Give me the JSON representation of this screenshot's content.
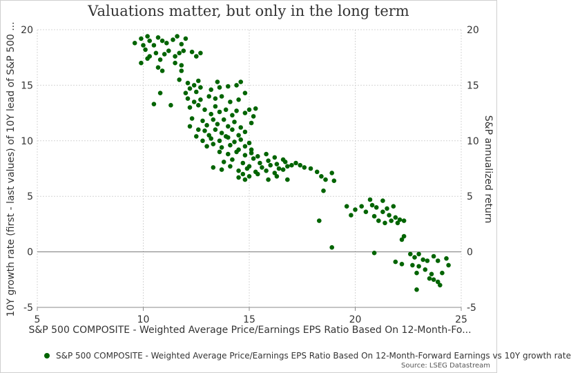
{
  "chart_data": {
    "type": "scatter",
    "title": "Valuations matter, but only in the long term",
    "xlabel": "S&P 500 COMPOSITE - Weighted Average Price/Earnings EPS Ratio Based On 12-Month-Fo...",
    "ylabel": "10Y growth rate (first - last values) of 10Y lead of S&P 500 ...",
    "y2label": "S&P annualized return",
    "xlim": [
      5,
      25
    ],
    "ylim": [
      -5,
      20
    ],
    "xticks": [
      5,
      10,
      15,
      20,
      25
    ],
    "yticks": [
      -5,
      0,
      5,
      10,
      15,
      20
    ],
    "grid": true,
    "legend_position": "bottom",
    "source": "Source: LSEG Datastream",
    "series": [
      {
        "name": "S&P 500 COMPOSITE - Weighted Average Price/Earnings EPS Ratio Based On 12-Month-Forward Earnings vs 10Y growth rate",
        "color": "#006400",
        "points": [
          [
            9.6,
            18.8
          ],
          [
            9.9,
            19.2
          ],
          [
            10.0,
            18.6
          ],
          [
            10.2,
            19.4
          ],
          [
            10.3,
            19.0
          ],
          [
            10.5,
            18.6
          ],
          [
            10.7,
            19.3
          ],
          [
            10.9,
            19.0
          ],
          [
            11.1,
            18.8
          ],
          [
            11.4,
            19.1
          ],
          [
            11.6,
            19.4
          ],
          [
            11.8,
            18.7
          ],
          [
            12.0,
            19.2
          ],
          [
            10.1,
            18.2
          ],
          [
            10.3,
            17.6
          ],
          [
            10.6,
            17.9
          ],
          [
            10.8,
            17.3
          ],
          [
            11.0,
            17.8
          ],
          [
            11.2,
            18.1
          ],
          [
            11.5,
            17.6
          ],
          [
            11.7,
            17.9
          ],
          [
            11.9,
            18.1
          ],
          [
            12.3,
            18.0
          ],
          [
            12.5,
            17.6
          ],
          [
            12.7,
            17.9
          ],
          [
            9.9,
            17.0
          ],
          [
            10.2,
            17.4
          ],
          [
            10.7,
            16.6
          ],
          [
            10.9,
            16.3
          ],
          [
            11.5,
            17.0
          ],
          [
            11.8,
            16.8
          ],
          [
            11.8,
            16.3
          ],
          [
            10.5,
            13.3
          ],
          [
            10.8,
            14.3
          ],
          [
            11.3,
            13.2
          ],
          [
            11.7,
            15.5
          ],
          [
            12.1,
            15.2
          ],
          [
            12.4,
            15.0
          ],
          [
            12.6,
            15.4
          ],
          [
            13.5,
            15.3
          ],
          [
            14.6,
            15.3
          ],
          [
            12.0,
            14.3
          ],
          [
            12.2,
            14.7
          ],
          [
            12.5,
            14.4
          ],
          [
            12.7,
            14.8
          ],
          [
            13.2,
            14.6
          ],
          [
            13.6,
            14.8
          ],
          [
            14.0,
            14.9
          ],
          [
            14.4,
            15.0
          ],
          [
            14.8,
            14.3
          ],
          [
            12.1,
            13.8
          ],
          [
            12.4,
            13.5
          ],
          [
            12.7,
            13.7
          ],
          [
            13.1,
            14.0
          ],
          [
            13.4,
            13.8
          ],
          [
            13.7,
            14.0
          ],
          [
            14.1,
            13.5
          ],
          [
            14.5,
            13.7
          ],
          [
            12.2,
            13.0
          ],
          [
            12.6,
            13.2
          ],
          [
            12.9,
            12.8
          ],
          [
            13.2,
            12.4
          ],
          [
            13.4,
            13.1
          ],
          [
            13.6,
            12.6
          ],
          [
            13.9,
            12.8
          ],
          [
            14.2,
            12.3
          ],
          [
            14.4,
            12.7
          ],
          [
            14.8,
            12.5
          ],
          [
            15.0,
            12.8
          ],
          [
            15.2,
            12.2
          ],
          [
            15.3,
            12.9
          ],
          [
            12.3,
            12.0
          ],
          [
            12.8,
            11.8
          ],
          [
            13.0,
            11.4
          ],
          [
            13.3,
            11.9
          ],
          [
            13.5,
            11.5
          ],
          [
            13.8,
            11.9
          ],
          [
            14.0,
            11.3
          ],
          [
            14.3,
            11.7
          ],
          [
            14.6,
            11.2
          ],
          [
            15.1,
            11.6
          ],
          [
            12.2,
            11.3
          ],
          [
            12.6,
            11.0
          ],
          [
            12.9,
            10.9
          ],
          [
            13.1,
            10.5
          ],
          [
            13.4,
            11.0
          ],
          [
            13.7,
            10.7
          ],
          [
            13.9,
            10.4
          ],
          [
            14.2,
            11.0
          ],
          [
            14.5,
            10.5
          ],
          [
            14.8,
            10.8
          ],
          [
            12.5,
            10.4
          ],
          [
            12.8,
            10.0
          ],
          [
            13.2,
            10.2
          ],
          [
            13.6,
            10.0
          ],
          [
            14.0,
            10.3
          ],
          [
            14.3,
            9.9
          ],
          [
            14.6,
            10.1
          ],
          [
            15.0,
            9.8
          ],
          [
            13.0,
            9.5
          ],
          [
            13.3,
            9.7
          ],
          [
            13.7,
            9.4
          ],
          [
            14.1,
            9.6
          ],
          [
            14.5,
            9.2
          ],
          [
            14.8,
            9.5
          ],
          [
            15.1,
            9.2
          ],
          [
            13.6,
            9.0
          ],
          [
            14.0,
            8.8
          ],
          [
            14.4,
            9.0
          ],
          [
            14.8,
            8.7
          ],
          [
            15.1,
            8.9
          ],
          [
            15.4,
            8.6
          ],
          [
            15.8,
            8.8
          ],
          [
            16.2,
            8.5
          ],
          [
            16.6,
            8.3
          ],
          [
            15.2,
            8.4
          ],
          [
            15.5,
            8.0
          ],
          [
            15.9,
            8.2
          ],
          [
            16.3,
            7.9
          ],
          [
            16.7,
            8.1
          ],
          [
            17.0,
            7.8
          ],
          [
            17.2,
            8.0
          ],
          [
            15.6,
            7.6
          ],
          [
            16.0,
            7.8
          ],
          [
            16.4,
            7.5
          ],
          [
            16.8,
            7.7
          ],
          [
            13.8,
            8.1
          ],
          [
            14.2,
            8.3
          ],
          [
            14.7,
            8.0
          ],
          [
            15.0,
            7.7
          ],
          [
            13.3,
            7.6
          ],
          [
            13.7,
            7.4
          ],
          [
            14.1,
            7.7
          ],
          [
            14.5,
            7.3
          ],
          [
            14.9,
            7.5
          ],
          [
            15.3,
            7.2
          ],
          [
            15.8,
            7.3
          ],
          [
            16.2,
            7.1
          ],
          [
            16.6,
            7.4
          ],
          [
            14.7,
            7.0
          ],
          [
            15.0,
            6.8
          ],
          [
            15.4,
            7.0
          ],
          [
            14.5,
            6.7
          ],
          [
            14.8,
            6.5
          ],
          [
            15.9,
            6.5
          ],
          [
            16.3,
            6.8
          ],
          [
            16.8,
            6.5
          ],
          [
            17.4,
            7.8
          ],
          [
            17.6,
            7.6
          ],
          [
            17.9,
            7.5
          ],
          [
            18.2,
            7.2
          ],
          [
            18.4,
            6.8
          ],
          [
            18.6,
            6.5
          ],
          [
            18.9,
            7.1
          ],
          [
            19.0,
            6.4
          ],
          [
            18.5,
            5.5
          ],
          [
            18.3,
            2.8
          ],
          [
            18.9,
            0.4
          ],
          [
            19.6,
            4.1
          ],
          [
            19.8,
            3.3
          ],
          [
            20.0,
            3.8
          ],
          [
            20.3,
            4.1
          ],
          [
            20.5,
            3.6
          ],
          [
            20.7,
            4.7
          ],
          [
            20.8,
            4.2
          ],
          [
            21.0,
            4.0
          ],
          [
            21.3,
            4.6
          ],
          [
            21.3,
            3.6
          ],
          [
            21.5,
            3.9
          ],
          [
            21.6,
            3.3
          ],
          [
            21.8,
            4.1
          ],
          [
            21.9,
            3.1
          ],
          [
            22.1,
            2.9
          ],
          [
            22.3,
            2.8
          ],
          [
            20.9,
            3.2
          ],
          [
            21.1,
            2.8
          ],
          [
            21.4,
            2.6
          ],
          [
            21.7,
            2.8
          ],
          [
            22.0,
            2.6
          ],
          [
            22.2,
            1.1
          ],
          [
            22.3,
            1.4
          ],
          [
            20.9,
            -0.1
          ],
          [
            21.9,
            -0.9
          ],
          [
            22.2,
            -1.1
          ],
          [
            22.6,
            -0.2
          ],
          [
            22.8,
            -0.5
          ],
          [
            23.0,
            -0.2
          ],
          [
            23.2,
            -0.7
          ],
          [
            23.4,
            -0.8
          ],
          [
            23.7,
            -0.4
          ],
          [
            23.9,
            -0.8
          ],
          [
            24.3,
            -0.6
          ],
          [
            24.4,
            -1.2
          ],
          [
            22.7,
            -1.2
          ],
          [
            23.0,
            -1.3
          ],
          [
            23.3,
            -1.6
          ],
          [
            23.6,
            -2.0
          ],
          [
            23.9,
            -2.7
          ],
          [
            24.1,
            -1.9
          ],
          [
            22.9,
            -1.9
          ],
          [
            23.5,
            -2.4
          ],
          [
            23.7,
            -2.5
          ],
          [
            24.0,
            -3.0
          ],
          [
            22.9,
            -3.4
          ]
        ]
      }
    ]
  }
}
